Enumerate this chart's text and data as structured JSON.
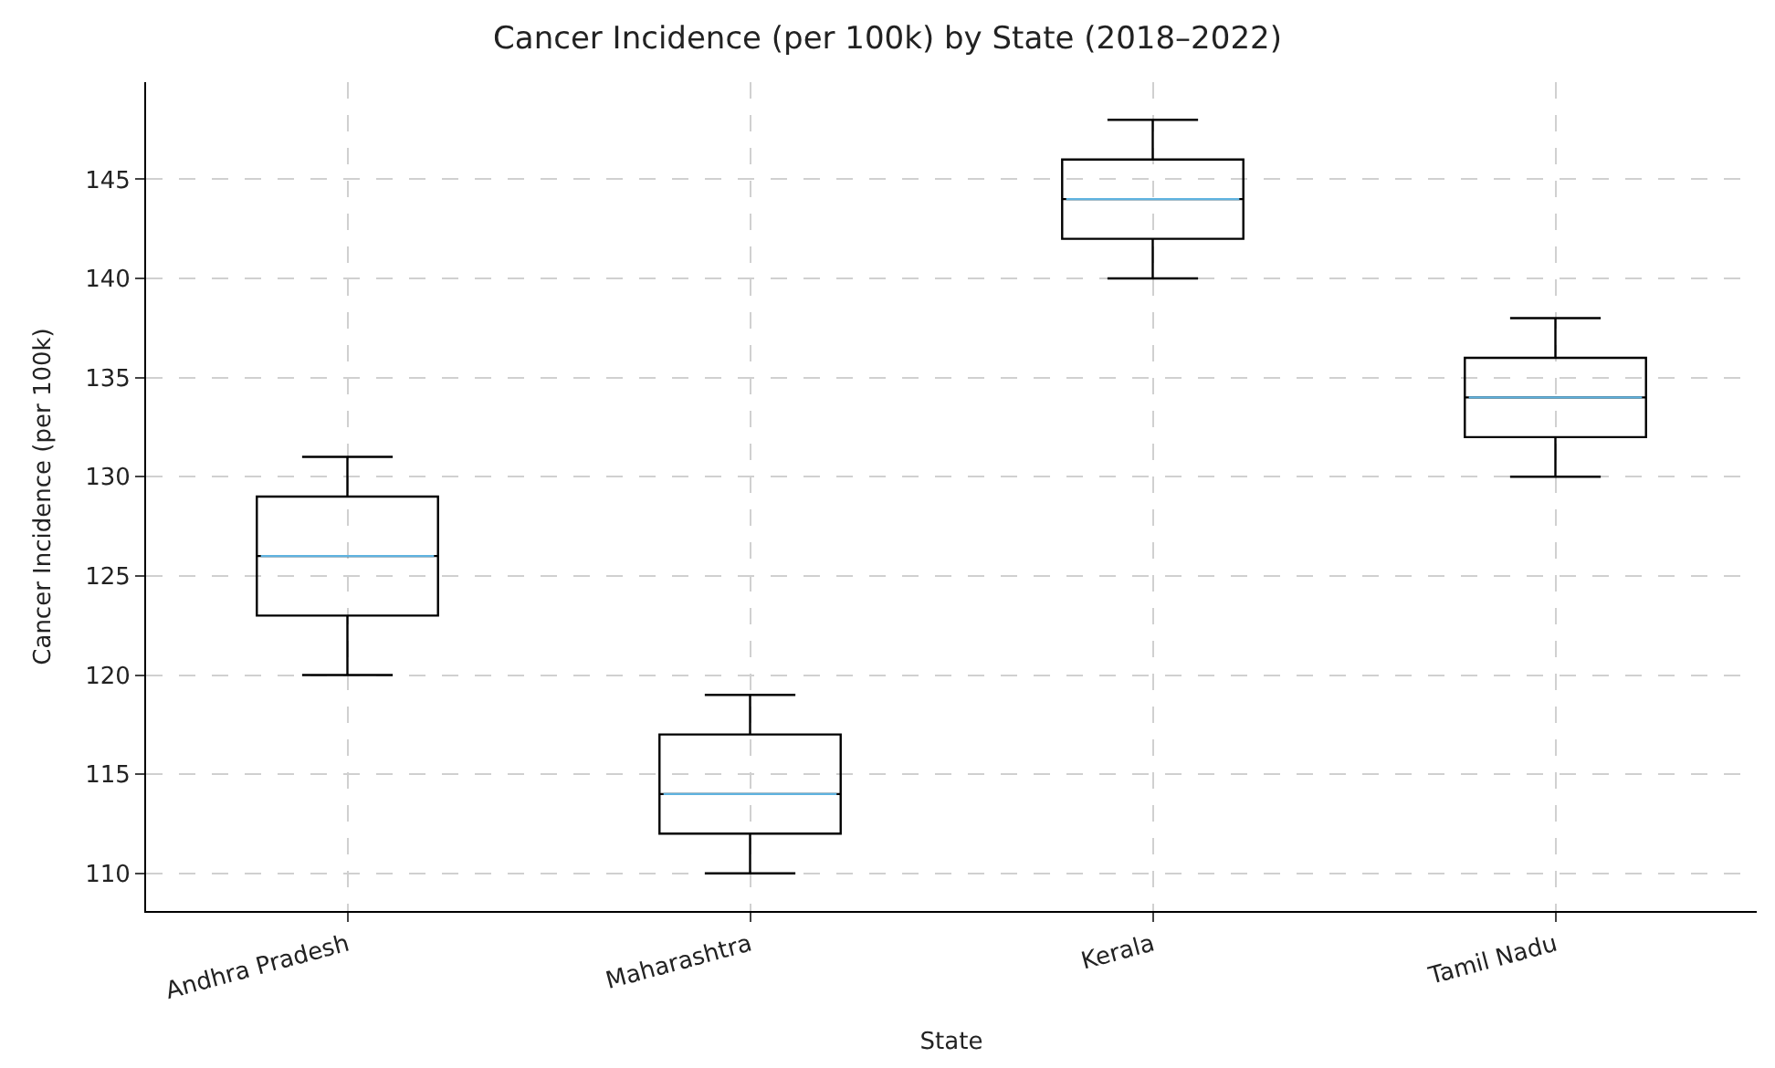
{
  "chart_data": {
    "type": "box",
    "title": "Cancer Incidence (per 100k) by State (2018–2022)",
    "xlabel": "State",
    "ylabel": "Cancer Incidence (per 100k)",
    "categories": [
      "Andhra Pradesh",
      "Maharashtra",
      "Kerala",
      "Tamil Nadu"
    ],
    "series": [
      {
        "color": "#000000",
        "boxes": [
          {
            "low": 120,
            "q1": 123,
            "median": 126,
            "q3": 129,
            "high": 131
          },
          {
            "low": 110,
            "q1": 112,
            "median": 114,
            "q3": 117,
            "high": 119
          },
          {
            "low": 140,
            "q1": 142,
            "median": 144,
            "q3": 146,
            "high": 148
          },
          {
            "low": 130,
            "q1": 132,
            "median": 134,
            "q3": 136,
            "high": 138
          }
        ]
      }
    ],
    "ylim": [
      108.1,
      149.9
    ],
    "yticks": [
      110,
      115,
      120,
      125,
      130,
      135,
      140,
      145
    ],
    "grid": true
  }
}
